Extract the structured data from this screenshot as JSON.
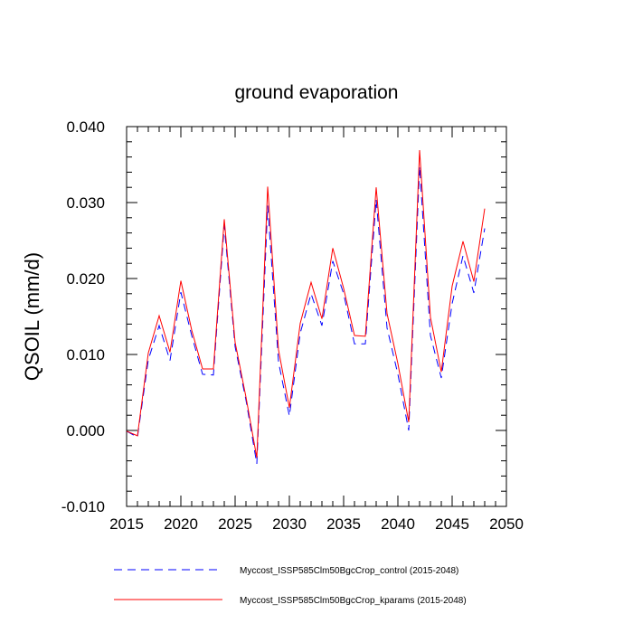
{
  "chart_data": {
    "type": "line",
    "title": "ground evaporation",
    "xlabel": "",
    "ylabel": "QSOIL  (mm/d)",
    "xlim": [
      2015,
      2050
    ],
    "ylim": [
      -0.01,
      0.04
    ],
    "xticks": [
      2015,
      2020,
      2025,
      2030,
      2035,
      2040,
      2045,
      2050
    ],
    "xtick_labels": [
      "2015",
      "2020",
      "2025",
      "2030",
      "2035",
      "2040",
      "2045",
      "2050"
    ],
    "yticks": [
      -0.01,
      0.0,
      0.01,
      0.02,
      0.03,
      0.04
    ],
    "ytick_labels": [
      "-0.010",
      "0.000",
      "0.010",
      "0.020",
      "0.030",
      "0.040"
    ],
    "x": [
      2015,
      2016,
      2017,
      2018,
      2019,
      2020,
      2021,
      2022,
      2023,
      2024,
      2025,
      2026,
      2027,
      2028,
      2029,
      2030,
      2031,
      2032,
      2033,
      2034,
      2035,
      2036,
      2037,
      2038,
      2039,
      2040,
      2041,
      2042,
      2043,
      2044,
      2045,
      2046,
      2047,
      2048
    ],
    "series": [
      {
        "name": "Myccost_ISSP585Clm50BgcCrop_control (2015-2048)",
        "color": "#0000ff",
        "dash": "dashed",
        "values": [
          -0.0001,
          -0.0009,
          0.0093,
          0.0138,
          0.0092,
          0.0182,
          0.0125,
          0.0074,
          0.0073,
          0.027,
          0.011,
          0.004,
          -0.0044,
          0.0296,
          0.009,
          0.0019,
          0.0128,
          0.018,
          0.0138,
          0.0223,
          0.018,
          0.0114,
          0.0114,
          0.0304,
          0.0135,
          0.0074,
          0.0,
          0.0348,
          0.0125,
          0.0069,
          0.0167,
          0.023,
          0.0181,
          0.0266
        ]
      },
      {
        "name": "Myccost_ISSP585Clm50BgcCrop_kparams (2015-2048)",
        "color": "#ff0000",
        "dash": "solid",
        "values": [
          -0.0001,
          -0.0007,
          0.0102,
          0.0151,
          0.0103,
          0.0197,
          0.0132,
          0.0081,
          0.0081,
          0.0278,
          0.0116,
          0.0044,
          -0.0036,
          0.0321,
          0.0106,
          0.003,
          0.0141,
          0.0195,
          0.0147,
          0.024,
          0.0187,
          0.0125,
          0.0124,
          0.032,
          0.0154,
          0.0088,
          0.0011,
          0.0369,
          0.0149,
          0.0077,
          0.019,
          0.0249,
          0.0196,
          0.0292
        ]
      }
    ],
    "legend_position": "bottom"
  }
}
